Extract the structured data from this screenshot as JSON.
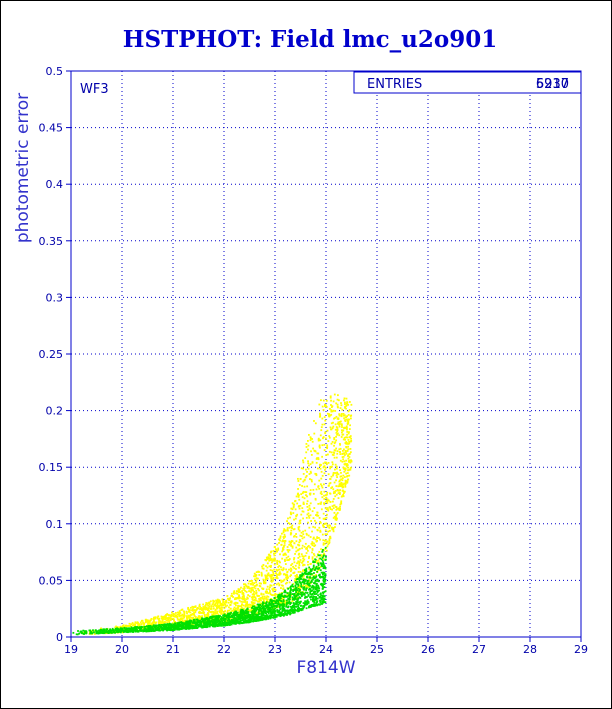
{
  "chart_data": {
    "type": "scatter",
    "title": "HSTPHOT: Field lmc_u2o901",
    "xlabel": "F814W",
    "ylabel": "photometric error",
    "xlim": [
      19,
      29
    ],
    "ylim": [
      0,
      0.5
    ],
    "x_ticks": [
      "19",
      "20",
      "21",
      "22",
      "23",
      "24",
      "25",
      "26",
      "27",
      "28",
      "29"
    ],
    "y_ticks": [
      "0",
      "0.05",
      "0.1",
      "0.15",
      "0.2",
      "0.25",
      "0.3",
      "0.35",
      "0.4",
      "0.45",
      "0.5"
    ],
    "grid": true,
    "panel_label": "WF3",
    "stats_box": {
      "label": "ENTRIES",
      "values": [
        "6937",
        "5210"
      ]
    },
    "series": [
      {
        "color": "#ffff00",
        "envelope": [
          {
            "x": 19.2,
            "ymin": 0.002,
            "ymax": 0.006
          },
          {
            "x": 20.0,
            "ymin": 0.004,
            "ymax": 0.01
          },
          {
            "x": 21.0,
            "ymin": 0.008,
            "ymax": 0.022
          },
          {
            "x": 22.0,
            "ymin": 0.012,
            "ymax": 0.035
          },
          {
            "x": 22.5,
            "ymin": 0.018,
            "ymax": 0.05
          },
          {
            "x": 23.0,
            "ymin": 0.025,
            "ymax": 0.08
          },
          {
            "x": 23.3,
            "ymin": 0.03,
            "ymax": 0.11
          },
          {
            "x": 23.6,
            "ymin": 0.04,
            "ymax": 0.17
          },
          {
            "x": 23.9,
            "ymin": 0.06,
            "ymax": 0.21
          },
          {
            "x": 24.2,
            "ymin": 0.1,
            "ymax": 0.215
          },
          {
            "x": 24.5,
            "ymin": 0.15,
            "ymax": 0.21
          }
        ]
      },
      {
        "color": "#00e000",
        "envelope": [
          {
            "x": 19.0,
            "ymin": 0.002,
            "ymax": 0.005
          },
          {
            "x": 20.0,
            "ymin": 0.004,
            "ymax": 0.008
          },
          {
            "x": 21.0,
            "ymin": 0.006,
            "ymax": 0.012
          },
          {
            "x": 22.0,
            "ymin": 0.01,
            "ymax": 0.02
          },
          {
            "x": 22.5,
            "ymin": 0.013,
            "ymax": 0.026
          },
          {
            "x": 23.0,
            "ymin": 0.017,
            "ymax": 0.035
          },
          {
            "x": 23.3,
            "ymin": 0.02,
            "ymax": 0.045
          },
          {
            "x": 23.6,
            "ymin": 0.025,
            "ymax": 0.06
          },
          {
            "x": 24.0,
            "ymin": 0.03,
            "ymax": 0.08
          }
        ]
      }
    ]
  }
}
